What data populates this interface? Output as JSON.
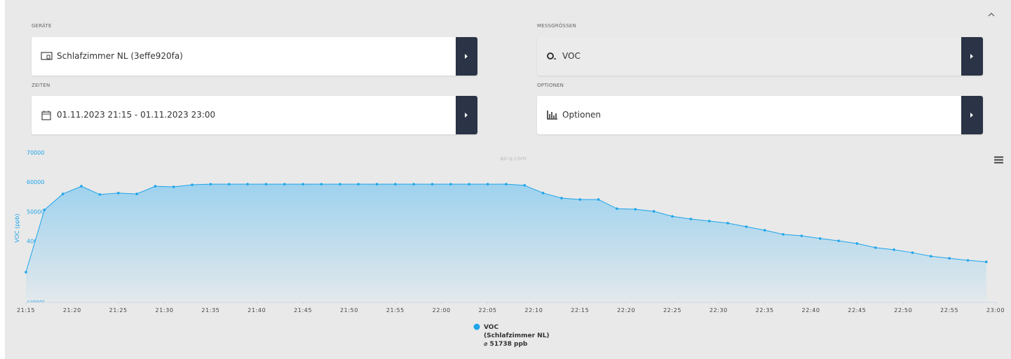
{
  "fields": [
    {
      "label": "GERÄTE",
      "value": "Schlafzimmer NL (3effe920fa)"
    },
    {
      "label": "MESSGRÖSSEN",
      "value": "VOC"
    },
    {
      "label": "ZEITEN",
      "value": "01.11.2023 21:15 - 01.11.2023 23:00"
    },
    {
      "label": "OPTIONEN",
      "value": "Optionen"
    }
  ],
  "chart_data": {
    "type": "line",
    "watermark": "air-q.com",
    "y_label": "VOC (ppb)",
    "x": [
      "21:15",
      "21:17",
      "21:19",
      "21:21",
      "21:23",
      "21:25",
      "21:27",
      "21:29",
      "21:31",
      "21:33",
      "21:35",
      "21:37",
      "21:39",
      "21:41",
      "21:43",
      "21:45",
      "21:47",
      "21:49",
      "21:51",
      "21:53",
      "21:55",
      "21:57",
      "21:59",
      "22:01",
      "22:03",
      "22:05",
      "22:07",
      "22:09",
      "22:11",
      "22:13",
      "22:15",
      "22:17",
      "22:19",
      "22:21",
      "22:23",
      "22:25",
      "22:27",
      "22:29",
      "22:31",
      "22:33",
      "22:35",
      "22:37",
      "22:39",
      "22:41",
      "22:43",
      "22:45",
      "22:47",
      "22:49",
      "22:51",
      "22:53",
      "22:55",
      "22:57",
      "22:59"
    ],
    "series": [
      {
        "name": "VOC",
        "subname": "(Schlafzimmer NL)",
        "average": "⌀ 51738 ppb",
        "color": "#1ea5ea",
        "values": [
          29500,
          50600,
          56000,
          58600,
          55800,
          56300,
          56000,
          58600,
          58400,
          59100,
          59300,
          59300,
          59300,
          59300,
          59300,
          59300,
          59300,
          59300,
          59300,
          59300,
          59300,
          59300,
          59300,
          59300,
          59300,
          59300,
          59300,
          58900,
          56300,
          54600,
          54100,
          54100,
          51000,
          50800,
          50100,
          48400,
          47500,
          46800,
          46100,
          44900,
          43700,
          42300,
          41800,
          40900,
          40100,
          39200,
          37800,
          37100,
          36100,
          34900,
          34200,
          33500,
          33000
        ]
      }
    ],
    "xlim": [
      "21:15",
      "23:00"
    ],
    "xticks": [
      "21:15",
      "21:20",
      "21:25",
      "21:30",
      "21:35",
      "21:40",
      "21:45",
      "21:50",
      "21:55",
      "22:00",
      "22:05",
      "22:10",
      "22:15",
      "22:20",
      "22:25",
      "22:30",
      "22:35",
      "22:40",
      "22:45",
      "22:50",
      "22:55",
      "23:00"
    ],
    "ylim": [
      20000,
      70000
    ],
    "yticks": [
      20000,
      30000,
      40000,
      50000,
      60000,
      70000
    ],
    "grid": false
  }
}
